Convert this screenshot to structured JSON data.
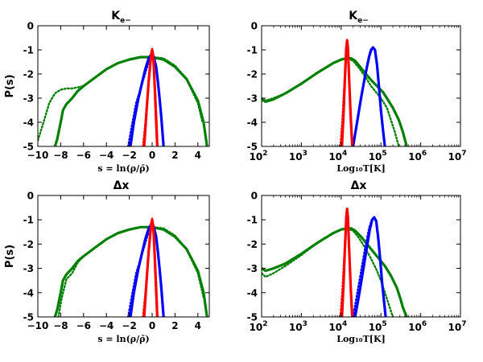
{
  "colors": {
    "red": "#ff0000",
    "blue": "#0000ff",
    "green": "#008000"
  },
  "chart_data": [
    {
      "type": "line",
      "scale_x": "linear",
      "title": "K",
      "title_sub": "e−",
      "xlabel": "s = ln(ρ/ρ̄)",
      "ylabel": "P(s)",
      "xlim": [
        -10,
        5
      ],
      "ylim": [
        -5,
        0
      ],
      "xticks": [
        -10,
        -8,
        -6,
        -4,
        -2,
        0,
        2,
        4
      ],
      "xtick_labels": [
        "−10",
        "−8",
        "−6",
        "−4",
        "−2",
        "0",
        "2",
        "4"
      ],
      "yticks": [
        0,
        -1,
        -2,
        -3,
        -4,
        -5
      ],
      "ytick_labels": [
        "0",
        "-1",
        "-2",
        "-3",
        "-4",
        "-5"
      ],
      "series": [
        {
          "name": "green-solid",
          "color": "green",
          "style": "solid",
          "x": [
            -8.5,
            -8.3,
            -8.0,
            -7.8,
            -7.5,
            -7.0,
            -6.5,
            -6.0,
            -5.0,
            -4.0,
            -3.0,
            -2.0,
            -1.0,
            0.0,
            1.0,
            2.0,
            3.0,
            4.0,
            4.5,
            4.8
          ],
          "y": [
            -5.0,
            -4.7,
            -4.0,
            -3.5,
            -3.25,
            -3.0,
            -2.7,
            -2.5,
            -2.15,
            -1.8,
            -1.55,
            -1.4,
            -1.3,
            -1.3,
            -1.4,
            -1.7,
            -2.2,
            -3.1,
            -4.0,
            -5.0
          ]
        },
        {
          "name": "green-dotted",
          "color": "green",
          "style": "dotted",
          "x": [
            -10.0,
            -9.5,
            -9.0,
            -8.5,
            -8.0,
            -7.5,
            -7.0,
            -6.0,
            -5.0,
            -4.0,
            -3.0,
            -2.0,
            -1.0,
            0.0,
            1.0,
            2.0,
            3.0,
            4.0,
            4.4
          ],
          "y": [
            -4.75,
            -4.0,
            -3.2,
            -2.8,
            -2.65,
            -2.6,
            -2.6,
            -2.5,
            -2.15,
            -1.8,
            -1.55,
            -1.4,
            -1.3,
            -1.3,
            -1.35,
            -1.65,
            -2.2,
            -3.2,
            -4.0
          ]
        },
        {
          "name": "blue-solid",
          "color": "blue",
          "style": "solid",
          "x": [
            -1.9,
            -1.6,
            -1.2,
            -0.9,
            -0.6,
            -0.3,
            -0.1,
            0.0,
            0.15,
            0.35,
            0.5,
            0.65,
            0.8,
            0.9,
            1.0
          ],
          "y": [
            -5.0,
            -4.0,
            -3.0,
            -2.4,
            -1.8,
            -1.35,
            -1.2,
            -1.15,
            -1.3,
            -1.7,
            -2.3,
            -3.0,
            -3.8,
            -4.4,
            -5.0
          ]
        },
        {
          "name": "blue-dotted",
          "color": "blue",
          "style": "dotted",
          "x": [
            -2.1,
            -1.8,
            -1.4,
            -1.0,
            -0.5,
            -0.2,
            0.0
          ],
          "y": [
            -5.0,
            -4.2,
            -3.2,
            -2.6,
            -1.8,
            -1.35,
            -1.15
          ]
        },
        {
          "name": "red-solid",
          "color": "red",
          "style": "solid",
          "x": [
            -0.7,
            -0.5,
            -0.3,
            -0.15,
            -0.05,
            0.0,
            0.1,
            0.2,
            0.3,
            0.4,
            0.45
          ],
          "y": [
            -5.0,
            -3.6,
            -2.3,
            -1.5,
            -1.1,
            -1.0,
            -1.25,
            -2.2,
            -3.4,
            -4.5,
            -5.0
          ]
        },
        {
          "name": "red-dotted",
          "color": "red",
          "style": "dotted",
          "x": [
            -0.8,
            -0.55,
            -0.35,
            -0.15,
            0.0,
            0.15,
            0.3,
            0.45
          ],
          "y": [
            -5.0,
            -3.8,
            -2.6,
            -1.5,
            -0.95,
            -1.6,
            -3.0,
            -4.6
          ]
        }
      ]
    },
    {
      "type": "line",
      "scale_x": "log",
      "title": "K",
      "title_sub": "e−",
      "xlabel": "Log₁₀T[K]",
      "ylabel": "",
      "xlim": [
        2,
        7
      ],
      "ylim": [
        -5,
        0
      ],
      "xticks": [
        2,
        3,
        4,
        5,
        6,
        7
      ],
      "xtick_base": "10",
      "xtick_exps": [
        "2",
        "3",
        "4",
        "5",
        "6",
        "7"
      ],
      "yticks": [
        0,
        -1,
        -2,
        -3,
        -4,
        -5
      ],
      "ytick_labels": [
        "0",
        "-1",
        "-2",
        "-3",
        "-4",
        "-5"
      ],
      "series": [
        {
          "name": "green-solid",
          "color": "green",
          "style": "solid",
          "x": [
            2.0,
            2.1,
            2.3,
            2.6,
            3.0,
            3.4,
            3.8,
            4.0,
            4.15,
            4.25,
            4.35,
            4.45,
            4.6,
            4.75,
            4.9,
            5.05,
            5.15,
            5.3,
            5.45,
            5.55,
            5.6,
            5.65
          ],
          "y": [
            -3.05,
            -3.15,
            -3.05,
            -2.8,
            -2.4,
            -1.95,
            -1.55,
            -1.4,
            -1.35,
            -1.35,
            -1.45,
            -1.65,
            -1.95,
            -2.25,
            -2.5,
            -2.75,
            -3.0,
            -3.4,
            -3.9,
            -4.4,
            -4.7,
            -5.0
          ]
        },
        {
          "name": "green-dotted",
          "color": "green",
          "style": "dotted",
          "x": [
            2.0,
            2.1,
            2.3,
            2.6,
            3.0,
            3.4,
            3.8,
            4.0,
            4.15,
            4.3,
            4.45,
            4.6,
            4.75,
            4.9,
            5.0,
            5.15,
            5.25,
            5.35,
            5.45
          ],
          "y": [
            -3.0,
            -3.1,
            -3.0,
            -2.8,
            -2.4,
            -1.95,
            -1.55,
            -1.4,
            -1.35,
            -1.45,
            -1.75,
            -2.1,
            -2.5,
            -2.8,
            -3.0,
            -3.4,
            -3.9,
            -4.4,
            -5.0
          ]
        },
        {
          "name": "blue-solid",
          "color": "blue",
          "style": "solid",
          "x": [
            4.3,
            4.4,
            4.5,
            4.6,
            4.7,
            4.75,
            4.8,
            4.85,
            4.9,
            4.95,
            5.0,
            5.05,
            5.1
          ],
          "y": [
            -5.0,
            -4.0,
            -3.0,
            -2.1,
            -1.3,
            -1.0,
            -0.9,
            -1.0,
            -1.6,
            -2.5,
            -3.5,
            -4.3,
            -5.0
          ]
        },
        {
          "name": "blue-dotted",
          "color": "blue",
          "style": "dotted",
          "x": [
            4.3,
            4.45,
            4.6,
            4.7,
            4.78
          ],
          "y": [
            -5.0,
            -3.5,
            -2.1,
            -1.3,
            -0.95
          ]
        },
        {
          "name": "red-solid",
          "color": "red",
          "style": "solid",
          "x": [
            4.02,
            4.06,
            4.1,
            4.13,
            4.15,
            4.17,
            4.2,
            4.24,
            4.28
          ],
          "y": [
            -5.0,
            -3.6,
            -2.0,
            -0.9,
            -0.6,
            -0.9,
            -2.2,
            -3.8,
            -5.0
          ]
        },
        {
          "name": "red-dotted",
          "color": "red",
          "style": "dotted",
          "x": [
            3.98,
            4.03,
            4.08,
            4.12,
            4.15,
            4.18,
            4.22,
            4.26
          ],
          "y": [
            -5.0,
            -3.9,
            -2.4,
            -1.2,
            -0.6,
            -1.2,
            -2.9,
            -4.6
          ]
        }
      ]
    },
    {
      "type": "line",
      "scale_x": "linear",
      "title": "Δx",
      "title_sub": "",
      "xlabel": "s = ln(ρ/ρ̄)",
      "ylabel": "P(s)",
      "xlim": [
        -10,
        5
      ],
      "ylim": [
        -5,
        0
      ],
      "xticks": [
        -10,
        -8,
        -6,
        -4,
        -2,
        0,
        2,
        4
      ],
      "xtick_labels": [
        "−10",
        "−8",
        "−6",
        "−4",
        "−2",
        "0",
        "2",
        "4"
      ],
      "yticks": [
        0,
        -1,
        -2,
        -3,
        -4,
        -5
      ],
      "ytick_labels": [
        "0",
        "-1",
        "-2",
        "-3",
        "-4",
        "-5"
      ],
      "series": [
        {
          "name": "green-solid",
          "color": "green",
          "style": "solid",
          "x": [
            -8.5,
            -8.3,
            -8.0,
            -7.8,
            -7.5,
            -7.0,
            -6.5,
            -6.0,
            -5.0,
            -4.0,
            -3.0,
            -2.0,
            -1.0,
            0.0,
            1.0,
            2.0,
            3.0,
            4.0,
            4.5,
            4.8
          ],
          "y": [
            -5.0,
            -4.7,
            -4.0,
            -3.5,
            -3.25,
            -3.0,
            -2.7,
            -2.5,
            -2.15,
            -1.8,
            -1.55,
            -1.4,
            -1.3,
            -1.3,
            -1.4,
            -1.7,
            -2.2,
            -3.1,
            -4.0,
            -5.0
          ]
        },
        {
          "name": "green-dotted",
          "color": "green",
          "style": "dotted",
          "x": [
            -8.2,
            -7.9,
            -7.5,
            -7.0,
            -6.5,
            -6.0,
            -5.0,
            -4.0,
            -3.0,
            -2.0,
            -1.0,
            0.0,
            1.0,
            2.0,
            3.0,
            4.0,
            4.5
          ],
          "y": [
            -5.0,
            -4.2,
            -3.45,
            -3.2,
            -2.75,
            -2.5,
            -2.15,
            -1.8,
            -1.55,
            -1.4,
            -1.3,
            -1.3,
            -1.35,
            -1.65,
            -2.2,
            -3.2,
            -4.2
          ]
        },
        {
          "name": "blue-solid",
          "color": "blue",
          "style": "solid",
          "x": [
            -1.9,
            -1.6,
            -1.2,
            -0.9,
            -0.6,
            -0.3,
            -0.1,
            0.0,
            0.15,
            0.35,
            0.5,
            0.65,
            0.8,
            0.9,
            1.0
          ],
          "y": [
            -5.0,
            -4.0,
            -3.0,
            -2.4,
            -1.8,
            -1.35,
            -1.2,
            -1.15,
            -1.3,
            -1.7,
            -2.3,
            -3.0,
            -3.8,
            -4.4,
            -5.0
          ]
        },
        {
          "name": "blue-dotted",
          "color": "blue",
          "style": "dotted",
          "x": [
            -2.1,
            -1.8,
            -1.4,
            -1.0,
            -0.5,
            -0.2,
            0.0
          ],
          "y": [
            -5.0,
            -4.2,
            -3.2,
            -2.6,
            -1.8,
            -1.35,
            -1.15
          ]
        },
        {
          "name": "red-solid",
          "color": "red",
          "style": "solid",
          "x": [
            -0.7,
            -0.5,
            -0.3,
            -0.15,
            -0.05,
            0.0,
            0.1,
            0.2,
            0.3,
            0.4,
            0.45
          ],
          "y": [
            -5.0,
            -3.6,
            -2.3,
            -1.5,
            -1.1,
            -1.0,
            -1.25,
            -2.2,
            -3.4,
            -4.5,
            -5.0
          ]
        },
        {
          "name": "red-dotted",
          "color": "red",
          "style": "dotted",
          "x": [
            -0.8,
            -0.55,
            -0.35,
            -0.15,
            0.0,
            0.15,
            0.3,
            0.45
          ],
          "y": [
            -5.0,
            -3.8,
            -2.6,
            -1.5,
            -0.95,
            -1.6,
            -3.0,
            -4.6
          ]
        }
      ]
    },
    {
      "type": "line",
      "scale_x": "log",
      "title": "Δx",
      "title_sub": "",
      "xlabel": "Log₁₀T[K]",
      "ylabel": "",
      "xlim": [
        2,
        7
      ],
      "ylim": [
        -5,
        0
      ],
      "xticks": [
        2,
        3,
        4,
        5,
        6,
        7
      ],
      "xtick_base": "10",
      "xtick_exps": [
        "2",
        "3",
        "4",
        "5",
        "6",
        "7"
      ],
      "yticks": [
        0,
        -1,
        -2,
        -3,
        -4,
        -5
      ],
      "ytick_labels": [
        "0",
        "-1",
        "-2",
        "-3",
        "-4",
        "-5"
      ],
      "series": [
        {
          "name": "green-solid",
          "color": "green",
          "style": "solid",
          "x": [
            2.0,
            2.1,
            2.3,
            2.6,
            3.0,
            3.4,
            3.8,
            4.0,
            4.15,
            4.25,
            4.35,
            4.5,
            4.65,
            4.8,
            4.95,
            5.1,
            5.25,
            5.4,
            5.5,
            5.55,
            5.6,
            5.65
          ],
          "y": [
            -3.0,
            -3.1,
            -3.0,
            -2.8,
            -2.4,
            -1.95,
            -1.55,
            -1.4,
            -1.35,
            -1.35,
            -1.45,
            -1.7,
            -2.0,
            -2.3,
            -2.6,
            -2.9,
            -3.3,
            -3.8,
            -4.3,
            -4.6,
            -4.8,
            -5.0
          ]
        },
        {
          "name": "green-dotted",
          "color": "green",
          "style": "dotted",
          "x": [
            2.0,
            2.1,
            2.3,
            2.6,
            3.0,
            3.4,
            3.8,
            4.0,
            4.15,
            4.3,
            4.45,
            4.6,
            4.75,
            4.9,
            5.0,
            5.1,
            5.2,
            5.3
          ],
          "y": [
            -3.2,
            -3.35,
            -3.2,
            -2.9,
            -2.45,
            -1.95,
            -1.55,
            -1.4,
            -1.35,
            -1.45,
            -1.75,
            -2.15,
            -2.6,
            -3.1,
            -3.5,
            -4.0,
            -4.5,
            -5.0
          ]
        },
        {
          "name": "blue-solid",
          "color": "blue",
          "style": "solid",
          "x": [
            4.35,
            4.45,
            4.55,
            4.65,
            4.72,
            4.78,
            4.83,
            4.88,
            4.93,
            4.98,
            5.03,
            5.08,
            5.12
          ],
          "y": [
            -5.0,
            -4.1,
            -3.1,
            -2.1,
            -1.4,
            -1.0,
            -0.9,
            -1.05,
            -1.7,
            -2.6,
            -3.6,
            -4.4,
            -5.0
          ]
        },
        {
          "name": "blue-dotted",
          "color": "blue",
          "style": "dotted",
          "x": [
            4.3,
            4.45,
            4.6,
            4.7,
            4.78
          ],
          "y": [
            -5.0,
            -3.6,
            -2.2,
            -1.35,
            -0.95
          ]
        },
        {
          "name": "red-solid",
          "color": "red",
          "style": "solid",
          "x": [
            4.02,
            4.06,
            4.1,
            4.13,
            4.15,
            4.17,
            4.2,
            4.24,
            4.28
          ],
          "y": [
            -5.0,
            -3.6,
            -2.0,
            -0.9,
            -0.55,
            -0.9,
            -2.2,
            -3.8,
            -5.0
          ]
        },
        {
          "name": "red-dotted",
          "color": "red",
          "style": "dotted",
          "x": [
            3.98,
            4.03,
            4.08,
            4.12,
            4.15,
            4.18,
            4.22,
            4.26
          ],
          "y": [
            -5.0,
            -3.9,
            -2.4,
            -1.2,
            -0.6,
            -1.2,
            -2.9,
            -4.6
          ]
        }
      ]
    }
  ]
}
